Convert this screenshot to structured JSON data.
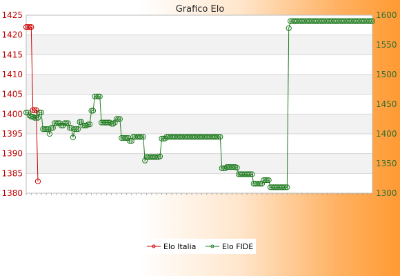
{
  "chart_data": {
    "type": "line",
    "title": "Grafico Elo",
    "y_left": {
      "min": 1380,
      "max": 1425,
      "ticks": [
        1380,
        1385,
        1390,
        1395,
        1400,
        1405,
        1410,
        1415,
        1420,
        1425
      ]
    },
    "y_right": {
      "min": 1300,
      "max": 1600,
      "ticks": [
        1300,
        1350,
        1400,
        1450,
        1500,
        1550,
        1600
      ]
    },
    "grid": "horizontal",
    "legend_placement": "bottom",
    "colors": {
      "italia": "#cc0000",
      "fide": "#1e7a1e"
    },
    "series": [
      {
        "name": "Elo Italia",
        "axis": "left",
        "values": [
          1422,
          1422,
          1422,
          1422,
          1401,
          1401,
          1401,
          1383
        ]
      },
      {
        "name": "Elo FIDE",
        "axis": "right",
        "values": [
          1436,
          1436,
          1431,
          1429,
          1429,
          1427,
          1427,
          1427,
          1436,
          1436,
          1408,
          1408,
          1408,
          1408,
          1400,
          1410,
          1410,
          1418,
          1418,
          1418,
          1418,
          1414,
          1414,
          1418,
          1418,
          1418,
          1410,
          1410,
          1394,
          1408,
          1408,
          1408,
          1420,
          1420,
          1414,
          1414,
          1414,
          1416,
          1416,
          1439,
          1439,
          1463,
          1463,
          1463,
          1463,
          1419,
          1419,
          1419,
          1419,
          1419,
          1419,
          1417,
          1417,
          1419,
          1425,
          1425,
          1425,
          1393,
          1393,
          1393,
          1393,
          1393,
          1388,
          1388,
          1395,
          1395,
          1395,
          1395,
          1395,
          1395,
          1395,
          1355,
          1361,
          1361,
          1361,
          1361,
          1361,
          1361,
          1361,
          1361,
          1362,
          1392,
          1392,
          1392,
          1395,
          1395,
          1395,
          1395,
          1395,
          1395,
          1395,
          1395,
          1395,
          1395,
          1395,
          1395,
          1395,
          1395,
          1395,
          1395,
          1395,
          1395,
          1395,
          1395,
          1395,
          1395,
          1395,
          1395,
          1395,
          1395,
          1395,
          1395,
          1395,
          1395,
          1395,
          1395,
          1395,
          1342,
          1342,
          1342,
          1344,
          1344,
          1344,
          1344,
          1344,
          1344,
          1343,
          1332,
          1332,
          1332,
          1332,
          1332,
          1332,
          1332,
          1332,
          1332,
          1316,
          1316,
          1316,
          1316,
          1316,
          1316,
          1322,
          1322,
          1322,
          1322,
          1310,
          1310,
          1310,
          1310,
          1310,
          1310,
          1310,
          1310,
          1310,
          1310,
          1310,
          1578,
          1590,
          1590,
          1590,
          1590,
          1590,
          1590,
          1590,
          1590,
          1590,
          1590,
          1590,
          1590,
          1590,
          1590,
          1590,
          1590,
          1590,
          1590,
          1590,
          1590,
          1590,
          1590,
          1590,
          1590,
          1590,
          1590,
          1590,
          1590,
          1590,
          1590,
          1590,
          1590,
          1590,
          1590,
          1590,
          1590,
          1590,
          1590,
          1590,
          1590,
          1590,
          1590,
          1590,
          1590,
          1590,
          1590,
          1590,
          1590,
          1590,
          1590
        ]
      }
    ]
  }
}
